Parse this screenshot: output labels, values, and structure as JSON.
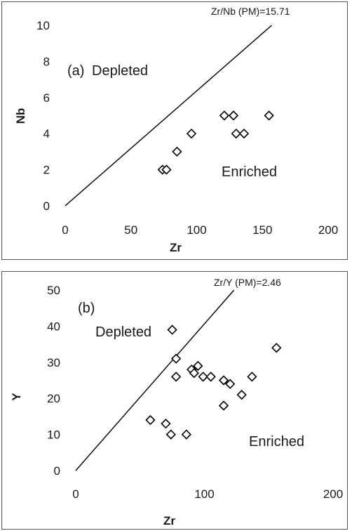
{
  "chart_data": [
    {
      "type": "scatter",
      "panel_label": "(a)",
      "xlabel": "Zr",
      "ylabel": "Nb",
      "xlim": [
        0,
        200
      ],
      "ylim": [
        0,
        10
      ],
      "xticks": [
        "0",
        "50",
        "100",
        "150",
        "200"
      ],
      "yticks": [
        "0",
        "2",
        "4",
        "6",
        "8",
        "10"
      ],
      "reference_line": {
        "label": "Zr/Nb (PM)=15.71",
        "ratio": 15.71
      },
      "region_labels": {
        "upper": "Depleted",
        "lower": "Enriched"
      },
      "marker": "open-diamond",
      "points": [
        {
          "x": 74,
          "y": 2
        },
        {
          "x": 77,
          "y": 2
        },
        {
          "x": 85,
          "y": 3
        },
        {
          "x": 96,
          "y": 4
        },
        {
          "x": 121,
          "y": 5
        },
        {
          "x": 128,
          "y": 5
        },
        {
          "x": 130,
          "y": 4
        },
        {
          "x": 136,
          "y": 4
        },
        {
          "x": 155,
          "y": 5
        }
      ]
    },
    {
      "type": "scatter",
      "panel_label": "(b)",
      "xlabel": "Zr",
      "ylabel": "Y",
      "xlim": [
        0,
        200
      ],
      "ylim": [
        0,
        50
      ],
      "xticks": [
        "0",
        "100",
        "200"
      ],
      "yticks": [
        "0",
        "10",
        "20",
        "30",
        "40",
        "50"
      ],
      "reference_line": {
        "label": "Zr/Y (PM)=2.46",
        "ratio": 2.46
      },
      "region_labels": {
        "upper": "Depleted",
        "lower": "Enriched"
      },
      "marker": "open-diamond",
      "points": [
        {
          "x": 58,
          "y": 14
        },
        {
          "x": 70,
          "y": 13
        },
        {
          "x": 74,
          "y": 10
        },
        {
          "x": 86,
          "y": 10
        },
        {
          "x": 75,
          "y": 39
        },
        {
          "x": 78,
          "y": 31
        },
        {
          "x": 78,
          "y": 26
        },
        {
          "x": 90,
          "y": 28
        },
        {
          "x": 92,
          "y": 27
        },
        {
          "x": 95,
          "y": 29
        },
        {
          "x": 99,
          "y": 26
        },
        {
          "x": 105,
          "y": 26
        },
        {
          "x": 115,
          "y": 25
        },
        {
          "x": 120,
          "y": 24
        },
        {
          "x": 115,
          "y": 18
        },
        {
          "x": 129,
          "y": 21
        },
        {
          "x": 137,
          "y": 26
        },
        {
          "x": 156,
          "y": 34
        }
      ]
    }
  ]
}
